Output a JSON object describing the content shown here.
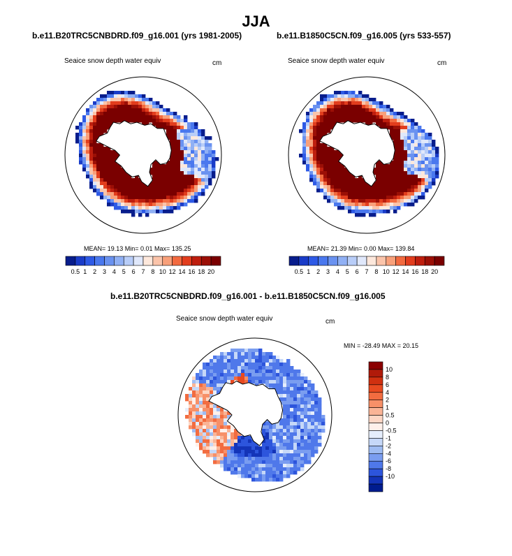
{
  "figure": {
    "title": "JJA"
  },
  "panels": [
    {
      "title": "b.e11.B20TRC5CNBDRD.f09_g16.001 (yrs 1981-2005)",
      "subtitle": "Seaice snow depth water equiv",
      "units": "cm",
      "stats": "MEAN= 19.13  Min=  0.01  Max= 135.25"
    },
    {
      "title": "b.e11.B1850C5CN.f09_g16.005 (yrs 533-557)",
      "subtitle": "Seaice snow depth water equiv",
      "units": "cm",
      "stats": "MEAN= 21.39  Min=  0.00  Max= 139.84"
    },
    {
      "title": "b.e11.B20TRC5CNBDRD.f09_g16.001 - b.e11.B1850C5CN.f09_g16.005",
      "subtitle": "Seaice snow depth water equiv",
      "units": "cm",
      "stats": "MIN = -28.49 MAX =  20.15"
    }
  ],
  "chart_data": [
    {
      "type": "heatmap",
      "projection": "south-polar-stereographic",
      "variable": "Seaice snow depth water equiv",
      "units": "cm",
      "colorbar_orientation": "horizontal",
      "levels": [
        0.5,
        1,
        2,
        3,
        4,
        5,
        6,
        7,
        8,
        10,
        12,
        14,
        16,
        18,
        20
      ],
      "level_labels": [
        "0.5",
        "1",
        "2",
        "3",
        "4",
        "5",
        "6",
        "7",
        "8",
        "10",
        "12",
        "14",
        "16",
        "18",
        "20"
      ],
      "colors": [
        "#081d8c",
        "#1a3cc8",
        "#2e5ae6",
        "#4a78ee",
        "#6a92f0",
        "#90b0f4",
        "#b8cdf8",
        "#e0e8fb",
        "#fde8dc",
        "#fbc4aa",
        "#f8a07a",
        "#f26a3f",
        "#e23d1d",
        "#be1e0e",
        "#9b0f06",
        "#7a0000"
      ],
      "mean": 19.13,
      "min": 0.01,
      "max": 135.25
    },
    {
      "type": "heatmap",
      "projection": "south-polar-stereographic",
      "variable": "Seaice snow depth water equiv",
      "units": "cm",
      "colorbar_orientation": "horizontal",
      "levels": [
        0.5,
        1,
        2,
        3,
        4,
        5,
        6,
        7,
        8,
        10,
        12,
        14,
        16,
        18,
        20
      ],
      "level_labels": [
        "0.5",
        "1",
        "2",
        "3",
        "4",
        "5",
        "6",
        "7",
        "8",
        "10",
        "12",
        "14",
        "16",
        "18",
        "20"
      ],
      "colors": [
        "#081d8c",
        "#1a3cc8",
        "#2e5ae6",
        "#4a78ee",
        "#6a92f0",
        "#90b0f4",
        "#b8cdf8",
        "#e0e8fb",
        "#fde8dc",
        "#fbc4aa",
        "#f8a07a",
        "#f26a3f",
        "#e23d1d",
        "#be1e0e",
        "#9b0f06",
        "#7a0000"
      ],
      "mean": 21.39,
      "min": 0.0,
      "max": 139.84
    },
    {
      "type": "heatmap",
      "projection": "south-polar-stereographic",
      "variable": "Seaice snow depth water equiv (difference)",
      "units": "cm",
      "colorbar_orientation": "vertical",
      "levels": [
        10,
        8,
        6,
        4,
        2,
        1,
        0.5,
        0,
        -0.5,
        -1,
        -2,
        -4,
        -6,
        -8,
        -10
      ],
      "level_labels": [
        "10",
        "8",
        "6",
        "4",
        "2",
        "1",
        "0.5",
        "0",
        "-0.5",
        "-1",
        "-2",
        "-4",
        "-6",
        "-8",
        "-10"
      ],
      "colors": [
        "#8b0000",
        "#b01a0a",
        "#d03010",
        "#e84a20",
        "#f26c40",
        "#f79068",
        "#fab496",
        "#fdd6c4",
        "#fff0ea",
        "#e6eefc",
        "#c6d8f8",
        "#9fbcf2",
        "#7a9df0",
        "#4f78ea",
        "#2d55dc",
        "#1434b8",
        "#001c8e"
      ],
      "min": -28.49,
      "max": 20.15
    }
  ]
}
